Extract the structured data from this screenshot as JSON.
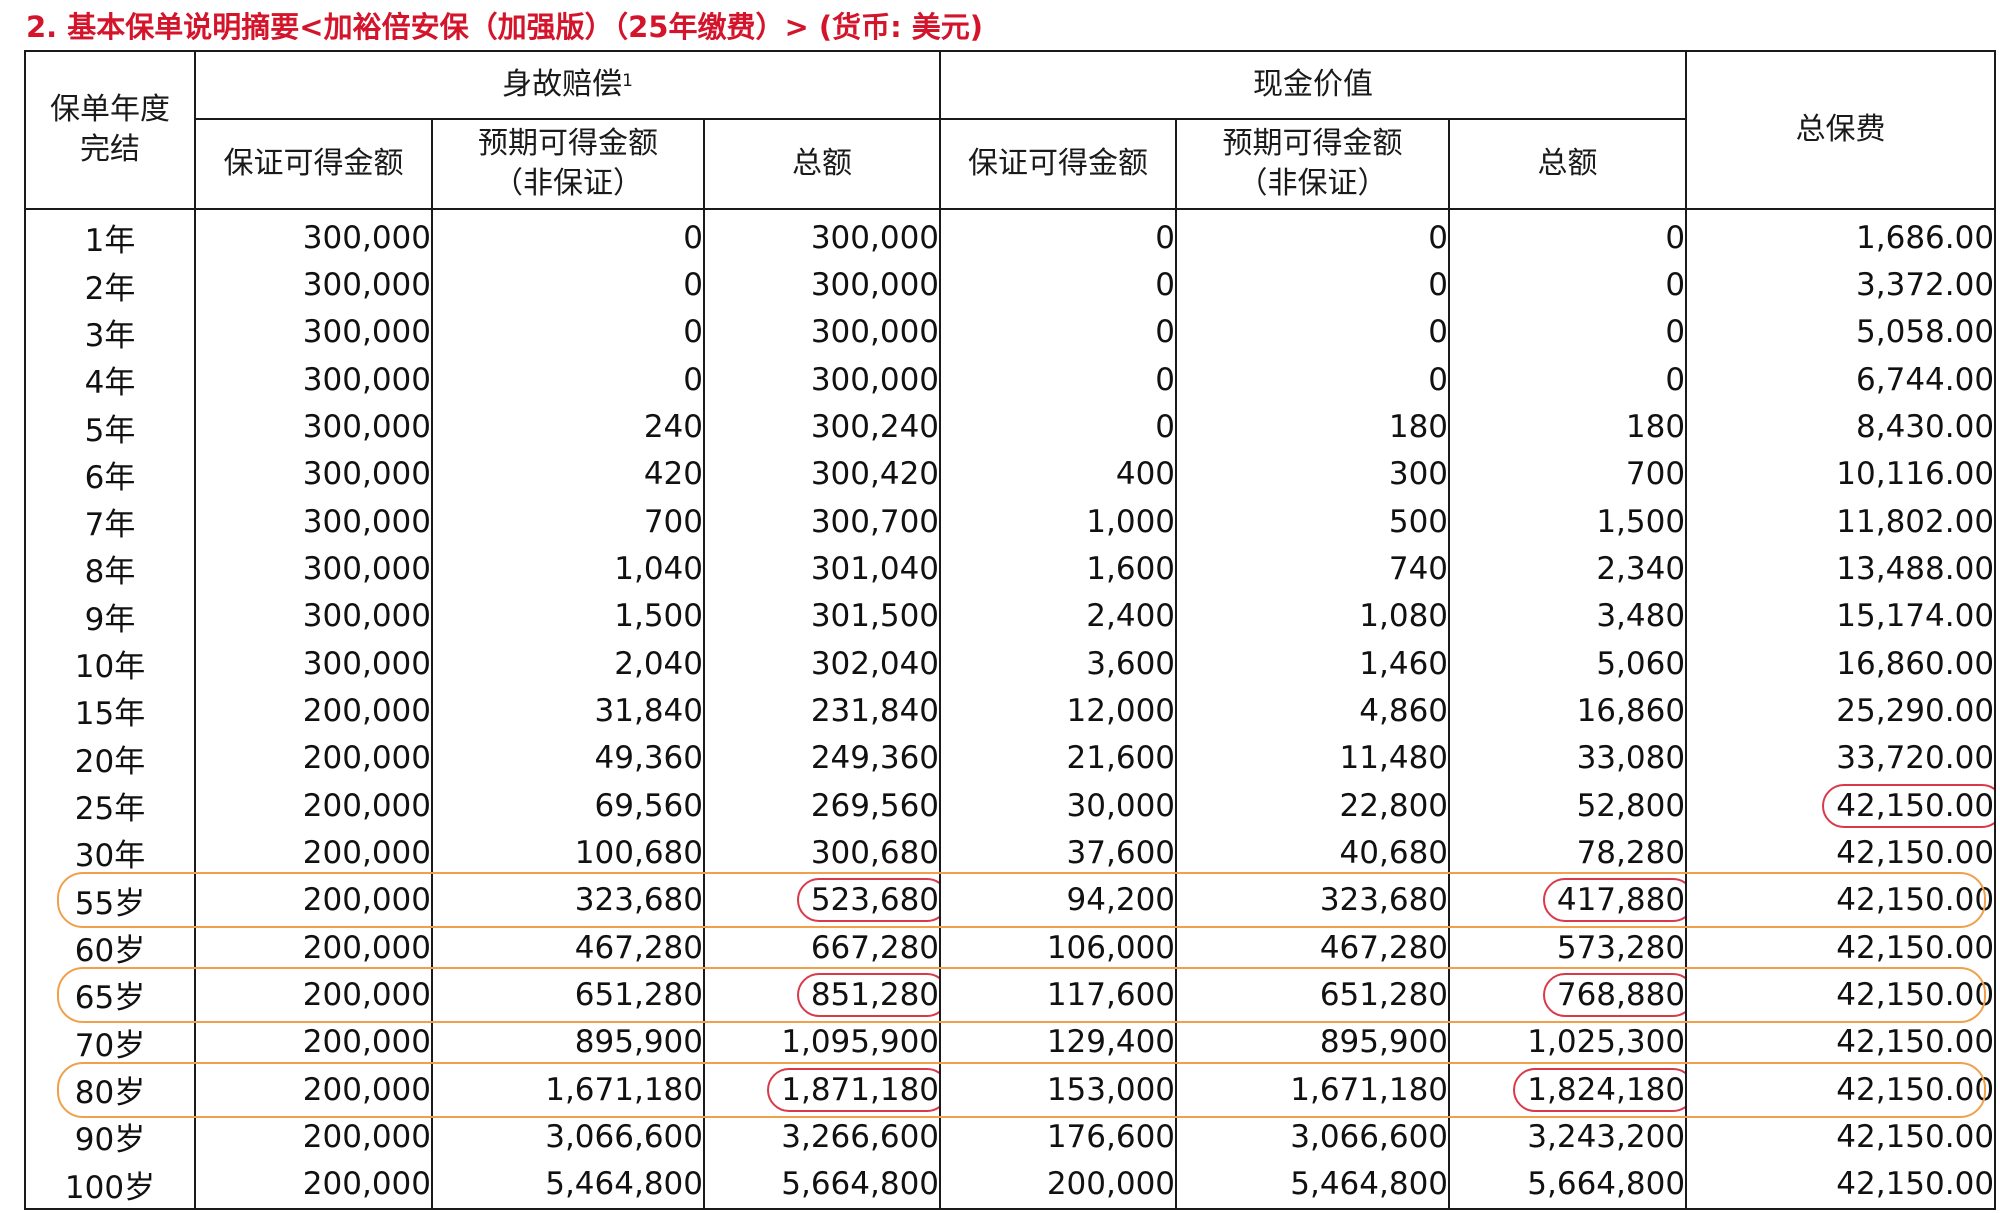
{
  "title": "2. 基本保单说明摘要<加裕倍安保（加强版）（25年缴费）> (货币: 美元)",
  "headers": {
    "policy_year_line1": "保单年度",
    "policy_year_line2": "完结",
    "death_benefit": "身故赔偿",
    "death_benefit_sup": "1",
    "cash_value": "现金价值",
    "total_premium": "总保费",
    "guaranteed": "保证可得金额",
    "expected_line1": "预期可得金额",
    "expected_line2": "（非保证）",
    "total": "总额"
  },
  "colors": {
    "title": "#d3142b",
    "value_circle": "#d83a4a",
    "row_highlight": "#f0a04b"
  },
  "rows": [
    {
      "year": "1年",
      "db_guaranteed": "300,000",
      "db_expected": "0",
      "db_total": "300,000",
      "cv_guaranteed": "0",
      "cv_expected": "0",
      "cv_total": "0",
      "premium": "1,686.00"
    },
    {
      "year": "2年",
      "db_guaranteed": "300,000",
      "db_expected": "0",
      "db_total": "300,000",
      "cv_guaranteed": "0",
      "cv_expected": "0",
      "cv_total": "0",
      "premium": "3,372.00"
    },
    {
      "year": "3年",
      "db_guaranteed": "300,000",
      "db_expected": "0",
      "db_total": "300,000",
      "cv_guaranteed": "0",
      "cv_expected": "0",
      "cv_total": "0",
      "premium": "5,058.00"
    },
    {
      "year": "4年",
      "db_guaranteed": "300,000",
      "db_expected": "0",
      "db_total": "300,000",
      "cv_guaranteed": "0",
      "cv_expected": "0",
      "cv_total": "0",
      "premium": "6,744.00"
    },
    {
      "year": "5年",
      "db_guaranteed": "300,000",
      "db_expected": "240",
      "db_total": "300,240",
      "cv_guaranteed": "0",
      "cv_expected": "180",
      "cv_total": "180",
      "premium": "8,430.00"
    },
    {
      "year": "6年",
      "db_guaranteed": "300,000",
      "db_expected": "420",
      "db_total": "300,420",
      "cv_guaranteed": "400",
      "cv_expected": "300",
      "cv_total": "700",
      "premium": "10,116.00"
    },
    {
      "year": "7年",
      "db_guaranteed": "300,000",
      "db_expected": "700",
      "db_total": "300,700",
      "cv_guaranteed": "1,000",
      "cv_expected": "500",
      "cv_total": "1,500",
      "premium": "11,802.00"
    },
    {
      "year": "8年",
      "db_guaranteed": "300,000",
      "db_expected": "1,040",
      "db_total": "301,040",
      "cv_guaranteed": "1,600",
      "cv_expected": "740",
      "cv_total": "2,340",
      "premium": "13,488.00"
    },
    {
      "year": "9年",
      "db_guaranteed": "300,000",
      "db_expected": "1,500",
      "db_total": "301,500",
      "cv_guaranteed": "2,400",
      "cv_expected": "1,080",
      "cv_total": "3,480",
      "premium": "15,174.00"
    },
    {
      "year": "10年",
      "db_guaranteed": "300,000",
      "db_expected": "2,040",
      "db_total": "302,040",
      "cv_guaranteed": "3,600",
      "cv_expected": "1,460",
      "cv_total": "5,060",
      "premium": "16,860.00"
    },
    {
      "year": "15年",
      "db_guaranteed": "200,000",
      "db_expected": "31,840",
      "db_total": "231,840",
      "cv_guaranteed": "12,000",
      "cv_expected": "4,860",
      "cv_total": "16,860",
      "premium": "25,290.00"
    },
    {
      "year": "20年",
      "db_guaranteed": "200,000",
      "db_expected": "49,360",
      "db_total": "249,360",
      "cv_guaranteed": "21,600",
      "cv_expected": "11,480",
      "cv_total": "33,080",
      "premium": "33,720.00"
    },
    {
      "year": "25年",
      "db_guaranteed": "200,000",
      "db_expected": "69,560",
      "db_total": "269,560",
      "cv_guaranteed": "30,000",
      "cv_expected": "22,800",
      "cv_total": "52,800",
      "premium": "42,150.00",
      "circled": [
        "premium"
      ]
    },
    {
      "year": "30年",
      "db_guaranteed": "200,000",
      "db_expected": "100,680",
      "db_total": "300,680",
      "cv_guaranteed": "37,600",
      "cv_expected": "40,680",
      "cv_total": "78,280",
      "premium": "42,150.00"
    },
    {
      "year": "55岁",
      "db_guaranteed": "200,000",
      "db_expected": "323,680",
      "db_total": "523,680",
      "cv_guaranteed": "94,200",
      "cv_expected": "323,680",
      "cv_total": "417,880",
      "premium": "42,150.00",
      "circled": [
        "db_total",
        "cv_total"
      ],
      "row_highlight": true
    },
    {
      "year": "60岁",
      "db_guaranteed": "200,000",
      "db_expected": "467,280",
      "db_total": "667,280",
      "cv_guaranteed": "106,000",
      "cv_expected": "467,280",
      "cv_total": "573,280",
      "premium": "42,150.00"
    },
    {
      "year": "65岁",
      "db_guaranteed": "200,000",
      "db_expected": "651,280",
      "db_total": "851,280",
      "cv_guaranteed": "117,600",
      "cv_expected": "651,280",
      "cv_total": "768,880",
      "premium": "42,150.00",
      "circled": [
        "db_total",
        "cv_total"
      ],
      "row_highlight": true
    },
    {
      "year": "70岁",
      "db_guaranteed": "200,000",
      "db_expected": "895,900",
      "db_total": "1,095,900",
      "cv_guaranteed": "129,400",
      "cv_expected": "895,900",
      "cv_total": "1,025,300",
      "premium": "42,150.00"
    },
    {
      "year": "80岁",
      "db_guaranteed": "200,000",
      "db_expected": "1,671,180",
      "db_total": "1,871,180",
      "cv_guaranteed": "153,000",
      "cv_expected": "1,671,180",
      "cv_total": "1,824,180",
      "premium": "42,150.00",
      "circled": [
        "db_total",
        "cv_total"
      ],
      "row_highlight": true
    },
    {
      "year": "90岁",
      "db_guaranteed": "200,000",
      "db_expected": "3,066,600",
      "db_total": "3,266,600",
      "cv_guaranteed": "176,600",
      "cv_expected": "3,066,600",
      "cv_total": "3,243,200",
      "premium": "42,150.00"
    },
    {
      "year": "100岁",
      "db_guaranteed": "200,000",
      "db_expected": "5,464,800",
      "db_total": "5,664,800",
      "cv_guaranteed": "200,000",
      "cv_expected": "5,464,800",
      "cv_total": "5,664,800",
      "premium": "42,150.00"
    }
  ]
}
